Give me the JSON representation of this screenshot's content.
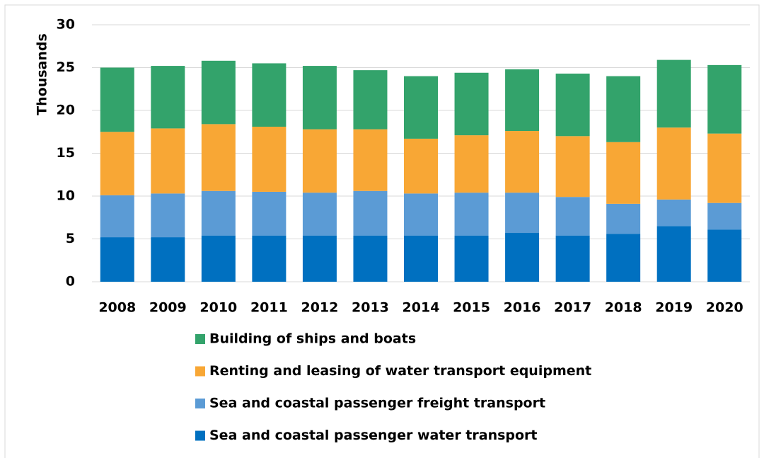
{
  "chart_data": {
    "type": "stacked_bar",
    "y_label": "Thousands",
    "categories": [
      "2008",
      "2009",
      "2010",
      "2011",
      "2012",
      "2013",
      "2014",
      "2015",
      "2016",
      "2017",
      "2018",
      "2019",
      "2020"
    ],
    "series": [
      {
        "name": "Sea and coastal passenger water transport",
        "color": "#0070c0",
        "values": [
          5.2,
          5.2,
          5.4,
          5.4,
          5.4,
          5.4,
          5.4,
          5.4,
          5.7,
          5.4,
          5.6,
          6.5,
          6.1
        ]
      },
      {
        "name": "Sea and coastal passenger freight transport",
        "color": "#5b9bd5",
        "values": [
          4.9,
          5.1,
          5.2,
          5.1,
          5.0,
          5.2,
          4.9,
          5.0,
          4.7,
          4.5,
          3.5,
          3.1,
          3.1
        ]
      },
      {
        "name": "Renting and leasing of water transport equipment",
        "color": "#f8a735",
        "values": [
          7.4,
          7.6,
          7.8,
          7.6,
          7.4,
          7.2,
          6.4,
          6.7,
          7.2,
          7.1,
          7.2,
          8.4,
          8.1
        ]
      },
      {
        "name": "Building of ships and boats",
        "color": "#33a36b",
        "values": [
          7.5,
          7.3,
          7.4,
          7.4,
          7.4,
          6.9,
          7.3,
          7.3,
          7.2,
          7.3,
          7.7,
          7.9,
          8.0
        ]
      }
    ],
    "ylim": [
      0,
      30
    ],
    "yticks": [
      0,
      5,
      10,
      15,
      20,
      25,
      30
    ],
    "grid": true
  }
}
